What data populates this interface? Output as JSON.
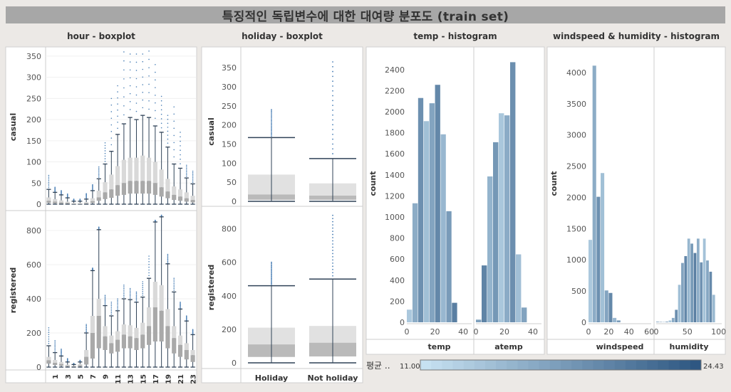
{
  "title": "특징적인 독립변수에 대한 대여량 분포도 (train set)",
  "chart_data": [
    {
      "type": "boxplot",
      "title": "hour - boxplot",
      "row_labels": [
        "casual",
        "registered"
      ],
      "x_ticks": [
        "1",
        "3",
        "5",
        "7",
        "9",
        "11",
        "13",
        "15",
        "17",
        "19",
        "21",
        "23"
      ],
      "casual": {
        "yticks": [
          0,
          50,
          100,
          150,
          200,
          250,
          300,
          350
        ],
        "ylim": [
          0,
          365
        ],
        "boxes": [
          {
            "x": 0,
            "min": 0,
            "q1": 3,
            "med": 8,
            "q3": 16,
            "max": 35,
            "outmax": 68
          },
          {
            "x": 1,
            "min": 0,
            "q1": 2,
            "med": 6,
            "q3": 12,
            "max": 28,
            "outmax": 40
          },
          {
            "x": 2,
            "min": 0,
            "q1": 1,
            "med": 4,
            "q3": 9,
            "max": 22,
            "outmax": 32
          },
          {
            "x": 3,
            "min": 0,
            "q1": 1,
            "med": 3,
            "q3": 6,
            "max": 15,
            "outmax": 24
          },
          {
            "x": 4,
            "min": 0,
            "q1": 0,
            "med": 1,
            "q3": 3,
            "max": 7,
            "outmax": 12
          },
          {
            "x": 5,
            "min": 0,
            "q1": 0,
            "med": 1,
            "q3": 3,
            "max": 7,
            "outmax": 12
          },
          {
            "x": 6,
            "min": 0,
            "q1": 1,
            "med": 2,
            "q3": 5,
            "max": 12,
            "outmax": 25
          },
          {
            "x": 7,
            "min": 0,
            "q1": 3,
            "med": 7,
            "q3": 14,
            "max": 32,
            "outmax": 46
          },
          {
            "x": 8,
            "min": 0,
            "q1": 8,
            "med": 16,
            "q3": 32,
            "max": 60,
            "outmax": 88
          },
          {
            "x": 9,
            "min": 0,
            "q1": 12,
            "med": 28,
            "q3": 52,
            "max": 95,
            "outmax": 145
          },
          {
            "x": 10,
            "min": 0,
            "q1": 15,
            "med": 35,
            "q3": 70,
            "max": 125,
            "outmax": 250
          },
          {
            "x": 11,
            "min": 0,
            "q1": 20,
            "med": 45,
            "q3": 90,
            "max": 165,
            "outmax": 280
          },
          {
            "x": 12,
            "min": 0,
            "q1": 22,
            "med": 50,
            "q3": 105,
            "max": 190,
            "outmax": 360
          },
          {
            "x": 13,
            "min": 0,
            "q1": 25,
            "med": 55,
            "q3": 110,
            "max": 205,
            "outmax": 355
          },
          {
            "x": 14,
            "min": 0,
            "q1": 25,
            "med": 55,
            "q3": 110,
            "max": 200,
            "outmax": 355
          },
          {
            "x": 15,
            "min": 0,
            "q1": 25,
            "med": 55,
            "q3": 115,
            "max": 210,
            "outmax": 355
          },
          {
            "x": 16,
            "min": 0,
            "q1": 25,
            "med": 55,
            "q3": 110,
            "max": 205,
            "outmax": 362
          },
          {
            "x": 17,
            "min": 0,
            "q1": 22,
            "med": 50,
            "q3": 100,
            "max": 185,
            "outmax": 330
          },
          {
            "x": 18,
            "min": 0,
            "q1": 18,
            "med": 40,
            "q3": 82,
            "max": 170,
            "outmax": 255
          },
          {
            "x": 19,
            "min": 0,
            "q1": 14,
            "med": 30,
            "q3": 60,
            "max": 135,
            "outmax": 210
          },
          {
            "x": 20,
            "min": 0,
            "q1": 10,
            "med": 22,
            "q3": 42,
            "max": 95,
            "outmax": 230
          },
          {
            "x": 21,
            "min": 0,
            "q1": 8,
            "med": 18,
            "q3": 35,
            "max": 85,
            "outmax": 170
          },
          {
            "x": 22,
            "min": 0,
            "q1": 6,
            "med": 14,
            "q3": 28,
            "max": 62,
            "outmax": 92
          },
          {
            "x": 23,
            "min": 0,
            "q1": 4,
            "med": 10,
            "q3": 20,
            "max": 48,
            "outmax": 78
          }
        ]
      },
      "registered": {
        "yticks": [
          0,
          200,
          400,
          600,
          800
        ],
        "ylim": [
          0,
          900
        ],
        "boxes": [
          {
            "x": 0,
            "min": 0,
            "q1": 20,
            "med": 40,
            "q3": 60,
            "max": 125,
            "outmax": 230
          },
          {
            "x": 1,
            "min": 0,
            "q1": 12,
            "med": 25,
            "q3": 42,
            "max": 85,
            "outmax": 155
          },
          {
            "x": 2,
            "min": 0,
            "q1": 8,
            "med": 18,
            "q3": 30,
            "max": 65,
            "outmax": 105
          },
          {
            "x": 3,
            "min": 0,
            "q1": 4,
            "med": 8,
            "q3": 14,
            "max": 30,
            "outmax": 50
          },
          {
            "x": 4,
            "min": 0,
            "q1": 2,
            "med": 4,
            "q3": 7,
            "max": 15,
            "outmax": 22
          },
          {
            "x": 5,
            "min": 0,
            "q1": 4,
            "med": 10,
            "q3": 18,
            "max": 30,
            "outmax": 40
          },
          {
            "x": 6,
            "min": 0,
            "q1": 15,
            "med": 60,
            "q3": 100,
            "max": 200,
            "outmax": 250
          },
          {
            "x": 7,
            "min": 0,
            "q1": 50,
            "med": 200,
            "q3": 300,
            "max": 565,
            "outmax": 580
          },
          {
            "x": 8,
            "min": 0,
            "q1": 110,
            "med": 300,
            "q3": 400,
            "max": 805,
            "outmax": 820
          },
          {
            "x": 9,
            "min": 0,
            "q1": 100,
            "med": 180,
            "q3": 240,
            "max": 360,
            "outmax": 420
          },
          {
            "x": 10,
            "min": 0,
            "q1": 80,
            "med": 140,
            "q3": 185,
            "max": 300,
            "outmax": 380
          },
          {
            "x": 11,
            "min": 0,
            "q1": 90,
            "med": 160,
            "q3": 210,
            "max": 330,
            "outmax": 400
          },
          {
            "x": 12,
            "min": 0,
            "q1": 110,
            "med": 190,
            "q3": 250,
            "max": 400,
            "outmax": 480
          },
          {
            "x": 13,
            "min": 0,
            "q1": 110,
            "med": 180,
            "q3": 245,
            "max": 395,
            "outmax": 460
          },
          {
            "x": 14,
            "min": 0,
            "q1": 100,
            "med": 170,
            "q3": 230,
            "max": 380,
            "outmax": 440
          },
          {
            "x": 15,
            "min": 0,
            "q1": 110,
            "med": 190,
            "q3": 260,
            "max": 410,
            "outmax": 500
          },
          {
            "x": 16,
            "min": 0,
            "q1": 130,
            "med": 240,
            "q3": 350,
            "max": 520,
            "outmax": 650
          },
          {
            "x": 17,
            "min": 0,
            "q1": 150,
            "med": 350,
            "q3": 500,
            "max": 850,
            "outmax": 860
          },
          {
            "x": 18,
            "min": 0,
            "q1": 150,
            "med": 330,
            "q3": 480,
            "max": 880,
            "outmax": 890
          },
          {
            "x": 19,
            "min": 0,
            "q1": 110,
            "med": 240,
            "q3": 340,
            "max": 605,
            "outmax": 660
          },
          {
            "x": 20,
            "min": 0,
            "q1": 80,
            "med": 170,
            "q3": 240,
            "max": 440,
            "outmax": 520
          },
          {
            "x": 21,
            "min": 0,
            "q1": 60,
            "med": 130,
            "q3": 185,
            "max": 340,
            "outmax": 380
          },
          {
            "x": 22,
            "min": 0,
            "q1": 45,
            "med": 100,
            "q3": 140,
            "max": 270,
            "outmax": 300
          },
          {
            "x": 23,
            "min": 0,
            "q1": 30,
            "med": 70,
            "q3": 100,
            "max": 190,
            "outmax": 220
          }
        ]
      }
    },
    {
      "type": "boxplot",
      "title": "holiday - boxplot",
      "row_labels": [
        "casual",
        "registered"
      ],
      "categories": [
        "Holiday",
        "Not holiday"
      ],
      "casual": {
        "yticks": [
          0,
          50,
          100,
          150,
          200,
          250,
          300,
          350
        ],
        "ylim": [
          0,
          365
        ],
        "boxes": [
          {
            "min": 0,
            "q1": 4,
            "med": 18,
            "q3": 70,
            "max": 167,
            "outmax": 240
          },
          {
            "min": 0,
            "q1": 4,
            "med": 15,
            "q3": 47,
            "max": 112,
            "outmax": 365
          }
        ]
      },
      "registered": {
        "yticks": [
          0,
          200,
          400,
          600,
          800
        ],
        "ylim": [
          0,
          900
        ],
        "boxes": [
          {
            "min": 0,
            "q1": 35,
            "med": 110,
            "q3": 210,
            "max": 460,
            "outmax": 600
          },
          {
            "min": 0,
            "q1": 38,
            "med": 120,
            "q3": 220,
            "max": 500,
            "outmax": 880
          }
        ]
      }
    },
    {
      "type": "bar",
      "title": "temp - histogram",
      "ylabel": "count",
      "yticks": [
        0,
        200,
        400,
        600,
        800,
        1000,
        1200,
        1400,
        1600,
        1800,
        2000,
        2200,
        2400
      ],
      "ylim": [
        0,
        2520
      ],
      "panels": [
        {
          "xlabel": "temp",
          "xticks": [
            0,
            20,
            40
          ],
          "xlim": [
            0,
            46
          ],
          "bin_width": 4,
          "bins": [
            0,
            4,
            8,
            12,
            16,
            20,
            24,
            28,
            32,
            36,
            40
          ],
          "values": [
            120,
            1130,
            2130,
            1910,
            2080,
            2255,
            1785,
            1055,
            185,
            0,
            0
          ]
        },
        {
          "xlabel": "atemp",
          "xticks": [
            0,
            20,
            40
          ],
          "xlim": [
            0,
            46
          ],
          "bin_width": 4,
          "bins": [
            0,
            4,
            8,
            12,
            16,
            20,
            24,
            28,
            32,
            36,
            40
          ],
          "values": [
            25,
            540,
            1385,
            1710,
            1985,
            1965,
            2470,
            645,
            140,
            0,
            0
          ]
        }
      ]
    },
    {
      "type": "bar",
      "title": "windspeed & humidity - histogram",
      "ylabel": "count",
      "yticks": [
        0,
        500,
        1000,
        1500,
        2000,
        2500,
        3000,
        3500,
        4000
      ],
      "ylim": [
        0,
        4250
      ],
      "panels": [
        {
          "xlabel": "windspeed",
          "xticks": [
            0,
            20,
            40,
            60
          ],
          "xlim": [
            0,
            62
          ],
          "bin_width": 4,
          "bins": [
            0,
            4,
            8,
            12,
            16,
            20,
            24,
            28,
            32,
            36,
            40,
            44,
            48,
            52,
            56
          ],
          "values": [
            1320,
            4110,
            2010,
            2390,
            510,
            470,
            70,
            30,
            0,
            0,
            0,
            0,
            0,
            0,
            0
          ]
        },
        {
          "xlabel": "humidity",
          "xticks": [
            0,
            50,
            100
          ],
          "xlim": [
            0,
            105
          ],
          "bin_width": 5,
          "bins": [
            0,
            5,
            10,
            15,
            20,
            25,
            30,
            35,
            40,
            45,
            50,
            55,
            60,
            65,
            70,
            75,
            80,
            85,
            90,
            95,
            100
          ],
          "values": [
            10,
            5,
            5,
            10,
            30,
            70,
            200,
            600,
            950,
            1060,
            1340,
            1260,
            1110,
            1340,
            960,
            1340,
            990,
            810,
            440,
            0,
            0
          ]
        }
      ]
    }
  ],
  "legend": {
    "label": "평균 ..",
    "min_label": "11.00",
    "max_label": "24.43",
    "min": 11.0,
    "max": 24.43,
    "color_low": "#c6e1f1",
    "color_high": "#2e5782"
  }
}
